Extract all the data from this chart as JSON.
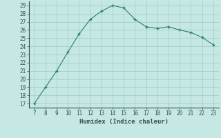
{
  "x": [
    7,
    8,
    9,
    10,
    11,
    12,
    13,
    14,
    15,
    16,
    17,
    18,
    19,
    20,
    21,
    22,
    23
  ],
  "y": [
    17,
    19,
    21,
    23.3,
    25.5,
    27.3,
    28.3,
    29.0,
    28.7,
    27.3,
    26.4,
    26.2,
    26.4,
    26.0,
    25.7,
    25.1,
    24.2
  ],
  "xlabel": "Humidex (Indice chaleur)",
  "xlim": [
    6.5,
    23.5
  ],
  "ylim": [
    16.5,
    29.5
  ],
  "yticks": [
    17,
    18,
    19,
    20,
    21,
    22,
    23,
    24,
    25,
    26,
    27,
    28,
    29
  ],
  "xticks": [
    7,
    8,
    9,
    10,
    11,
    12,
    13,
    14,
    15,
    16,
    17,
    18,
    19,
    20,
    21,
    22,
    23
  ],
  "line_color": "#2e7d6e",
  "marker": "+",
  "bg_color": "#c5e8e5",
  "grid_color": "#a0c8c5",
  "text_color": "#2e5050"
}
